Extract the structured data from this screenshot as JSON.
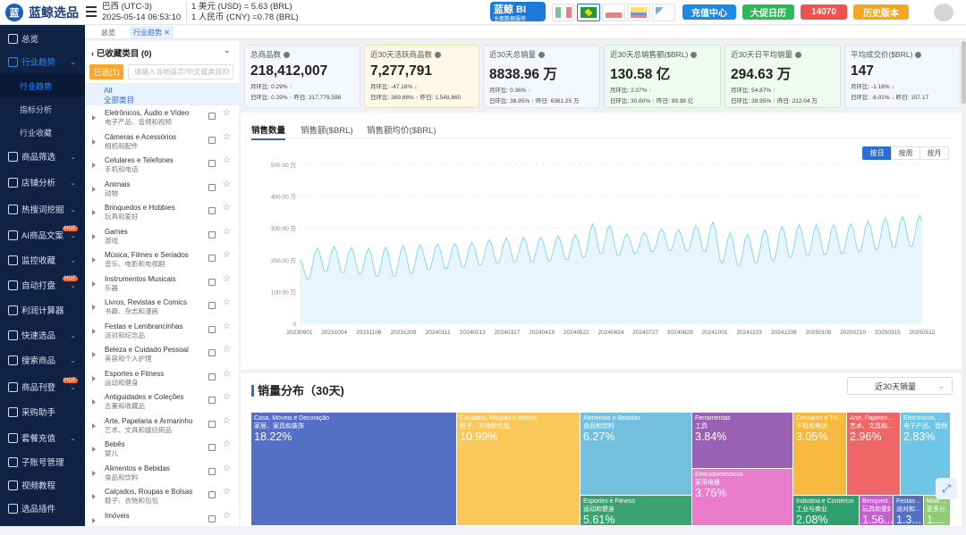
{
  "top": {
    "logo_mark": "蓝",
    "logo_text": "蓝鲸选品",
    "tz_country": "巴西 (UTC-3)",
    "tz_time": "2025-05-14 06:53:10",
    "fx_usd": "1 美元 (USD) =  5.63 (BRL)",
    "fx_cny": "1 人民币 (CNY) =0.78 (BRL)",
    "bi_label": "蓝鲸 BI",
    "bi_sub": "全面数据服务",
    "recharge": "充值中心",
    "promo": "大促日历",
    "points": "14070",
    "history": "历史版本"
  },
  "tabs": [
    "总览",
    "行业趋势"
  ],
  "sidebar": [
    {
      "label": "总览",
      "icon": "home-icon"
    },
    {
      "label": "行业趋势",
      "icon": "trend-icon",
      "active": true
    },
    {
      "label": "商品筛选",
      "icon": "grid-icon"
    },
    {
      "label": "店铺分析",
      "icon": "shop-icon"
    },
    {
      "label": "热搜词挖掘",
      "icon": "search-hot-icon"
    },
    {
      "label": "AI商品文案",
      "icon": "ai-icon",
      "hot": true
    },
    {
      "label": "监控收藏",
      "icon": "monitor-icon"
    },
    {
      "label": "自动打盘",
      "icon": "bell-icon",
      "hot": true
    },
    {
      "label": "利润计算器",
      "icon": "calc-icon"
    },
    {
      "label": "快速选品",
      "icon": "lightning-icon"
    },
    {
      "label": "搜索商品",
      "icon": "search-icon"
    },
    {
      "label": "商品刊登",
      "icon": "publish-icon",
      "hot": true
    },
    {
      "label": "采购助手",
      "icon": "cart-icon"
    },
    {
      "label": "套餐充值",
      "icon": "package-icon"
    },
    {
      "label": "子账号管理",
      "icon": "user-icon"
    },
    {
      "label": "视频教程",
      "icon": "video-icon"
    },
    {
      "label": "选品插件",
      "icon": "plugin-icon"
    }
  ],
  "sidebar_sub": [
    "行业趋势",
    "指标分析",
    "行业收藏"
  ],
  "categories": {
    "header": "已收藏类目 (0)",
    "selected_btn": "已选(1)",
    "search_placeholder": "请输入当地语言/中文或类目ID",
    "all_en": "All",
    "all_zh": "全部类目",
    "items": [
      {
        "en": "Eletrônicos, Áudio e Vídeo",
        "zh": "电子产品、音频和视频"
      },
      {
        "en": "Câmeras e Acessórios",
        "zh": "相机和配件"
      },
      {
        "en": "Celulares e Telefones",
        "zh": "手机和电话"
      },
      {
        "en": "Animais",
        "zh": "动物"
      },
      {
        "en": "Brinquedos e Hobbies",
        "zh": "玩具和爱好"
      },
      {
        "en": "Games",
        "zh": "游戏"
      },
      {
        "en": "Música, Filmes e Seriados",
        "zh": "音乐、电影和电视剧"
      },
      {
        "en": "Instrumentos Musicais",
        "zh": "乐器"
      },
      {
        "en": "Livros, Revistas e Comics",
        "zh": "书籍、杂志和漫画"
      },
      {
        "en": "Festas e Lembrancinhas",
        "zh": "派对和纪念品"
      },
      {
        "en": "Beleza e Cuidado Pessoal",
        "zh": "美容和个人护理"
      },
      {
        "en": "Esportes e Fitness",
        "zh": "运动和健身"
      },
      {
        "en": "Antiguidades e Coleções",
        "zh": "古董和收藏品"
      },
      {
        "en": "Arte, Papelaria e Armarinho",
        "zh": "艺术、文具和缝纫用品"
      },
      {
        "en": "Bebês",
        "zh": "婴儿"
      },
      {
        "en": "Alimentos e Bebidas",
        "zh": "食品和饮料"
      },
      {
        "en": "Calçados, Roupas e Bolsas",
        "zh": "鞋子、衣物和包包"
      },
      {
        "en": "Imóveis",
        "zh": ""
      }
    ]
  },
  "kpis": [
    {
      "title": "总商品数",
      "value": "218,412,007",
      "r1": "月环比:  0.29%",
      "r1d": "up",
      "r2": "日环比:  0.29%",
      "r2d": "up",
      "r2b": "昨日: 217,779,598",
      "style": "blue"
    },
    {
      "title": "近30天活跃商品数",
      "value": "7,277,791",
      "r1": "月环比:  -47.18%",
      "r1d": "down",
      "r2": "日环比:  369.88%",
      "r2d": "up",
      "r2b": "昨日: 1,548,860",
      "style": "yellow"
    },
    {
      "title": "近30天总销量",
      "value": "8838.96 万",
      "r1": "月环比:  0.36%",
      "r1d": "up",
      "r2": "日环比:  38.95%",
      "r2d": "up",
      "r2b": "昨日: 6361.25 万",
      "style": "blue"
    },
    {
      "title": "近30天总销售额($BRL)",
      "value": "130.58 亿",
      "r1": "月环比:  2.07%",
      "r1d": "up",
      "r2": "日环比:  30.60%",
      "r2d": "up",
      "r2b": "昨日: 99.98 亿",
      "style": "green"
    },
    {
      "title": "近30天日平均销量",
      "value": "294.63 万",
      "r1": "月环比:  54.87%",
      "r1d": "up",
      "r2": "日环比:  38.95%",
      "r2d": "up",
      "r2b": "昨日: 212.04 万",
      "style": "green"
    },
    {
      "title": "平均成交价($BRL)",
      "value": "147",
      "r1": "月环比:  -1.18%",
      "r1d": "down",
      "r2": "日环比:  -6.01%",
      "r2d": "down",
      "r2b": "昨日: 157.17",
      "style": "blue"
    }
  ],
  "chart_tabs": [
    "销售数量",
    "销售额($BRL)",
    "销售额均价($BRL)"
  ],
  "chart_periods": [
    "按日",
    "按周",
    "按月"
  ],
  "chart_data": {
    "type": "area",
    "title": "",
    "ylim": [
      0,
      500
    ],
    "yticks": [
      "0",
      "100.00 万",
      "200.00 万",
      "300.00 万",
      "400.00 万",
      "500.00 万"
    ],
    "xticks": [
      "20230901",
      "20231004",
      "20231106",
      "20231209",
      "20240111",
      "20240213",
      "20240317",
      "20240419",
      "20240522",
      "20240624",
      "20240727",
      "20240829",
      "20241001",
      "20241103",
      "20241206",
      "20250108",
      "20250210",
      "20250315",
      "20250512"
    ],
    "weekly_low": [
      120,
      160,
      155,
      150,
      140,
      150,
      165,
      170,
      175,
      185,
      190,
      190,
      195,
      200,
      215,
      210,
      220,
      225,
      225,
      220,
      170,
      185,
      190,
      205,
      210,
      215,
      220,
      230,
      235,
      240
    ],
    "weekly_high": [
      200,
      245,
      240,
      235,
      240,
      245,
      250,
      250,
      255,
      265,
      270,
      270,
      275,
      280,
      330,
      280,
      285,
      300,
      290,
      330,
      285,
      280,
      300,
      310,
      310,
      310,
      315,
      330,
      335,
      340
    ],
    "color": "#7fd3f0"
  },
  "treemap": {
    "title": "销量分布（30天)",
    "select": "近30天销量",
    "cells": [
      {
        "en": "Casa, Móveis e Decoração",
        "zh": "家居、家具和装饰",
        "pct": "18.22%",
        "color": "#5470c6"
      },
      {
        "en": "Calçados, Roupas e Bolsas",
        "zh": "鞋子、衣物和包包",
        "pct": "10.99%",
        "color": "#fac858"
      },
      {
        "en": "Alimentos e Bebidas",
        "zh": "食品和饮料",
        "pct": "6.27%",
        "color": "#73c0de"
      },
      {
        "en": "Ferramentas",
        "zh": "工具",
        "pct": "3.84%",
        "color": "#9a60b4"
      },
      {
        "en": "Eletrodomésticos",
        "zh": "家用电器",
        "pct": "3.76%",
        "color": "#ea7ccc"
      },
      {
        "en": "Celulares e Tel...",
        "zh": "手机和电话",
        "pct": "3.05%",
        "color": "#f7b93e"
      },
      {
        "en": "Arte, Papelari...",
        "zh": "艺术、文具和...",
        "pct": "2.96%",
        "color": "#ee6666"
      },
      {
        "en": "Eletrônicos, ...",
        "zh": "电子产品、音频...",
        "pct": "2.83%",
        "color": "#6ec5e5"
      },
      {
        "en": "Esportes e Fitness",
        "zh": "运动和健身",
        "pct": "5.61%",
        "color": "#3ba272"
      },
      {
        "en": "Indústria e Comércio",
        "zh": "工业与商业",
        "pct": "2.08%",
        "color": "#2e9f6e"
      },
      {
        "en": "Brinqued...",
        "zh": "玩具和爱好",
        "pct": "1.56...",
        "color": "#c95ed1"
      },
      {
        "en": "Festas ...",
        "zh": "派对和...",
        "pct": "1.3...",
        "color": "#5470c6"
      },
      {
        "en": "Mais ...",
        "zh": "更多分...",
        "pct": "1....",
        "color": "#91cc75"
      }
    ]
  }
}
